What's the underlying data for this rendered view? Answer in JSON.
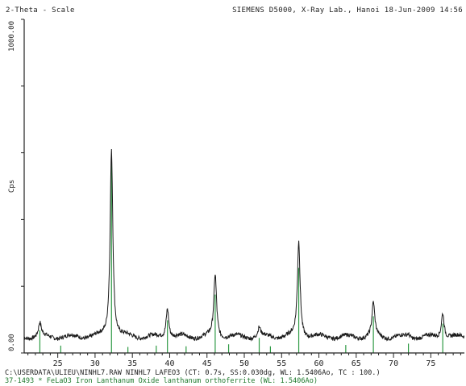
{
  "header": {
    "left": "2-Theta - Scale",
    "right": "SIEMENS D5000, X-Ray Lab., Hanoi 18-Jun-2009 14:56"
  },
  "footer": {
    "line1": "C:\\USERDATA\\ULIEU\\NINHL7.RAW NINHL7 LAFEO3 (CT:  0.7s, SS:0.030dg, WL: 1.5406Ao, TC :    100.)",
    "line2": "37-1493 * FeLaO3 Iron Lanthanum Oxide lanthanum orthoferrite (WL: 1.5406Ao)"
  },
  "colors": {
    "trace": "#1a1a1a",
    "reference": "#2e9a44",
    "axis": "#222222"
  },
  "chart_data": {
    "type": "line",
    "ylabel": "Cps",
    "xlim": [
      20.5,
      79.5
    ],
    "ylim": [
      0,
      1000
    ],
    "y_tick_labels": [
      "0.00",
      "1000.00"
    ],
    "x_tick_labels": [
      25,
      30,
      35,
      40,
      45,
      50,
      55,
      60,
      65,
      70,
      75
    ],
    "background": 48,
    "peaks": [
      {
        "x": 22.6,
        "y": 88
      },
      {
        "x": 32.2,
        "y": 612
      },
      {
        "x": 39.7,
        "y": 138
      },
      {
        "x": 46.1,
        "y": 235
      },
      {
        "x": 52.0,
        "y": 75
      },
      {
        "x": 57.3,
        "y": 335
      },
      {
        "x": 67.3,
        "y": 148
      },
      {
        "x": 72.0,
        "y": 55
      },
      {
        "x": 76.6,
        "y": 125
      }
    ],
    "reference_lines": [
      {
        "x": 22.6,
        "i": 68
      },
      {
        "x": 25.4,
        "i": 22
      },
      {
        "x": 32.2,
        "i": 588
      },
      {
        "x": 34.4,
        "i": 18
      },
      {
        "x": 38.2,
        "i": 22
      },
      {
        "x": 39.7,
        "i": 98
      },
      {
        "x": 42.2,
        "i": 20
      },
      {
        "x": 46.1,
        "i": 175
      },
      {
        "x": 47.9,
        "i": 26
      },
      {
        "x": 52.0,
        "i": 45
      },
      {
        "x": 53.5,
        "i": 20
      },
      {
        "x": 57.3,
        "i": 255
      },
      {
        "x": 63.6,
        "i": 24
      },
      {
        "x": 67.3,
        "i": 110
      },
      {
        "x": 72.0,
        "i": 28
      },
      {
        "x": 76.6,
        "i": 88
      }
    ]
  }
}
